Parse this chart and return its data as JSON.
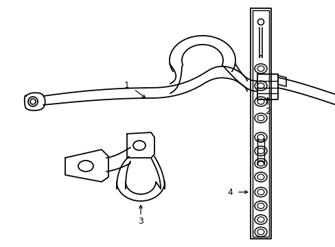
{
  "bg_color": "#ffffff",
  "line_color": "#000000",
  "line_width": 1.3,
  "fig_width": 4.89,
  "fig_height": 3.6,
  "dpi": 100
}
